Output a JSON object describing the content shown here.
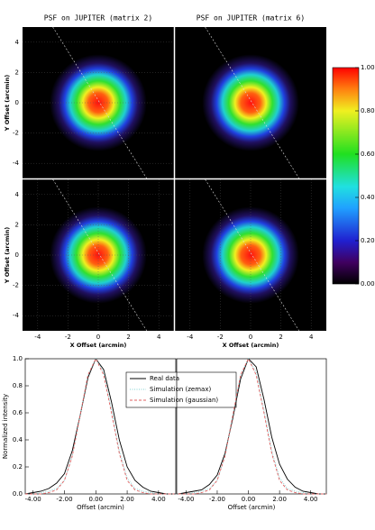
{
  "chart_data": [
    {
      "type": "heatmap",
      "title": "PSF on JUPITER (matrix 2)",
      "ylabel": "Y Offset (arcmin)",
      "xlim": [
        -5,
        5
      ],
      "ylim": [
        -5,
        5
      ],
      "yticks": [
        -4,
        -2,
        0,
        2,
        4
      ],
      "grid": true
    },
    {
      "type": "heatmap",
      "title": "PSF on JUPITER (matrix 6)",
      "xlim": [
        -5,
        5
      ],
      "ylim": [
        -5,
        5
      ]
    },
    {
      "type": "heatmap",
      "ylabel": "Y Offset (arcmin)",
      "xlabel": "X Offset (arcmin)",
      "xlim": [
        -5,
        5
      ],
      "ylim": [
        -5,
        5
      ],
      "xticks": [
        -4,
        -2,
        0,
        2,
        4
      ],
      "yticks": [
        -4,
        -2,
        0,
        2,
        4
      ],
      "grid": true
    },
    {
      "type": "heatmap",
      "xlabel": "X Offset (arcmin)",
      "xlim": [
        -5,
        5
      ],
      "ylim": [
        -5,
        5
      ],
      "xticks": [
        -4,
        -2,
        0,
        2,
        4
      ],
      "grid": true
    },
    {
      "type": "colorbar",
      "ylim": [
        0,
        1
      ],
      "yticks": [
        {
          "value": 0,
          "label": "0.00"
        },
        {
          "value": 0.2,
          "label": "0.20"
        },
        {
          "value": 0.4,
          "label": "0.40"
        },
        {
          "value": 0.6,
          "label": "0.60"
        },
        {
          "value": 0.8,
          "label": "0.80"
        },
        {
          "value": 1,
          "label": "1.00"
        }
      ]
    },
    {
      "type": "line",
      "ylabel": "Normalized intensity",
      "xlabel": "Offset (arcmin)",
      "xlim": [
        -4.5,
        5.1
      ],
      "ylim": [
        0,
        1
      ],
      "xticks": [
        {
          "value": -4,
          "label": "-4.00"
        },
        {
          "value": -2,
          "label": "-2.00"
        },
        {
          "value": 0,
          "label": "0.00"
        },
        {
          "value": 2,
          "label": "2.00"
        },
        {
          "value": 4,
          "label": "4.00"
        }
      ],
      "yticks": [
        {
          "value": 0,
          "label": "0.0"
        },
        {
          "value": 0.2,
          "label": "0.2"
        },
        {
          "value": 0.4,
          "label": "0.4"
        },
        {
          "value": 0.6,
          "label": "0.6"
        },
        {
          "value": 0.8,
          "label": "0.8"
        },
        {
          "value": 1,
          "label": "1.0"
        }
      ],
      "x": [
        -4.5,
        -4,
        -3.5,
        -3,
        -2.5,
        -2,
        -1.5,
        -1,
        -0.5,
        0,
        0.5,
        1,
        1.5,
        2,
        2.5,
        3,
        3.5,
        4,
        4.5,
        5
      ],
      "series": [
        {
          "name": "Real data",
          "color": "#000000",
          "values": [
            0,
            0.01,
            0.02,
            0.04,
            0.08,
            0.15,
            0.32,
            0.58,
            0.86,
            1.0,
            0.92,
            0.68,
            0.4,
            0.2,
            0.1,
            0.05,
            0.02,
            0.01,
            0,
            0
          ]
        },
        {
          "name": "Simulation (zemax)",
          "color": "#80d0d0",
          "values": [
            0,
            0,
            0.01,
            0.02,
            0.04,
            0.1,
            0.28,
            0.58,
            0.88,
            1.0,
            0.9,
            0.62,
            0.32,
            0.12,
            0.04,
            0.02,
            0.01,
            0,
            0,
            0
          ]
        },
        {
          "name": "Simulation (gaussian)",
          "color": "#e06060",
          "values": [
            0,
            0,
            0,
            0.01,
            0.03,
            0.1,
            0.28,
            0.58,
            0.88,
            1.0,
            0.88,
            0.6,
            0.3,
            0.1,
            0.03,
            0.01,
            0,
            0,
            0,
            0
          ]
        }
      ]
    },
    {
      "type": "line",
      "xlabel": "Offset (arcmin)",
      "xlim": [
        -4.6,
        5
      ],
      "ylim": [
        0,
        1
      ],
      "xticks": [
        {
          "value": -4,
          "label": "-4.00"
        },
        {
          "value": -2,
          "label": "-2.00"
        },
        {
          "value": 0,
          "label": "0.00"
        },
        {
          "value": 2,
          "label": "2.00"
        },
        {
          "value": 4,
          "label": "4.00"
        }
      ],
      "x": [
        -4.5,
        -4,
        -3.5,
        -3,
        -2.5,
        -2,
        -1.5,
        -1,
        -0.5,
        0,
        0.5,
        1,
        1.5,
        2,
        2.5,
        3,
        3.5,
        4,
        4.5,
        5
      ],
      "series": [
        {
          "color": "#000000",
          "values": [
            0,
            0.01,
            0.02,
            0.03,
            0.07,
            0.14,
            0.3,
            0.56,
            0.85,
            1.0,
            0.94,
            0.7,
            0.42,
            0.22,
            0.11,
            0.05,
            0.02,
            0.01,
            0,
            0
          ]
        },
        {
          "color": "#80d0d0",
          "values": [
            0,
            0,
            0.01,
            0.02,
            0.04,
            0.1,
            0.28,
            0.58,
            0.88,
            1.0,
            0.9,
            0.62,
            0.32,
            0.12,
            0.04,
            0.02,
            0.01,
            0,
            0,
            0
          ]
        },
        {
          "color": "#e06060",
          "values": [
            0,
            0,
            0,
            0.01,
            0.03,
            0.1,
            0.28,
            0.58,
            0.88,
            1.0,
            0.88,
            0.6,
            0.3,
            0.1,
            0.03,
            0.01,
            0,
            0,
            0,
            0
          ]
        }
      ]
    }
  ]
}
